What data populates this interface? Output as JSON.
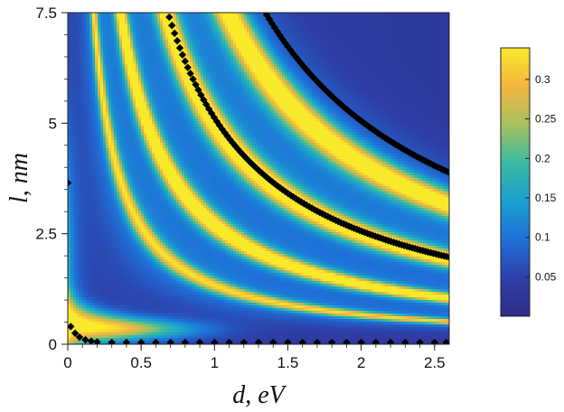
{
  "chart_data": {
    "type": "heatmap",
    "x_axis": {
      "label_var": "d",
      "label_unit": "eV",
      "range": [
        0,
        2.6
      ],
      "ticks": [
        0,
        0.5,
        1,
        1.5,
        2,
        2.5
      ],
      "tick_labels": [
        "0",
        "0.5",
        "1",
        "1.5",
        "2",
        "2.5"
      ]
    },
    "y_axis": {
      "label_var": "l",
      "label_unit": "nm",
      "range": [
        0,
        7.5
      ],
      "ticks": [
        0,
        2.5,
        5,
        7.5
      ],
      "tick_labels": [
        "0",
        "2.5",
        "5",
        "7.5"
      ]
    },
    "colorbar": {
      "range": [
        0,
        0.34
      ],
      "ticks": [
        0.05,
        0.1,
        0.15,
        0.2,
        0.25,
        0.3
      ],
      "tick_labels": [
        "0.05",
        "0.1",
        "0.15",
        "0.2",
        "0.25",
        "0.3"
      ],
      "colors": [
        "#2f2c86",
        "#2e3fa8",
        "#1e70d8",
        "#1aa0cf",
        "#3ab9a3",
        "#a6c15e",
        "#f4b53f",
        "#f8ea2a"
      ]
    },
    "heatmap_features": {
      "bright_ridges_l_times_d": [
        1.33,
        2.7,
        5.0,
        8.2
      ],
      "low_l_band": {
        "l_center": 0.3,
        "peak_near_d": 0.15
      }
    },
    "series": [
      {
        "marker": "diamond",
        "color": "#000000",
        "points": [
          [
            0.0,
            3.65
          ],
          [
            0.02,
            0.4
          ],
          [
            0.05,
            0.25
          ],
          [
            0.08,
            0.16
          ],
          [
            0.12,
            0.1
          ],
          [
            0.16,
            0.07
          ],
          [
            0.2,
            0.05
          ],
          [
            0.3,
            0.04
          ],
          [
            0.4,
            0.04
          ],
          [
            0.5,
            0.04
          ],
          [
            0.6,
            0.04
          ],
          [
            0.7,
            0.04
          ],
          [
            0.8,
            0.04
          ],
          [
            0.9,
            0.04
          ],
          [
            1.0,
            0.04
          ],
          [
            1.1,
            0.04
          ],
          [
            1.2,
            0.04
          ],
          [
            1.3,
            0.04
          ],
          [
            1.4,
            0.04
          ],
          [
            1.5,
            0.04
          ],
          [
            1.6,
            0.04
          ],
          [
            1.7,
            0.04
          ],
          [
            1.8,
            0.04
          ],
          [
            1.9,
            0.04
          ],
          [
            2.0,
            0.04
          ],
          [
            2.1,
            0.04
          ],
          [
            2.2,
            0.04
          ],
          [
            2.3,
            0.04
          ],
          [
            2.4,
            0.04
          ],
          [
            2.5,
            0.04
          ],
          [
            2.58,
            0.04
          ]
        ]
      },
      {
        "marker": "diamond",
        "color": "#000000",
        "curve_l_times_d": 5.12,
        "d_range": [
          0.17,
          2.6
        ]
      },
      {
        "marker": "diamond",
        "color": "#000000",
        "curve_l_times_d": 10.1,
        "d_range": [
          0.69,
          2.6
        ]
      }
    ]
  }
}
